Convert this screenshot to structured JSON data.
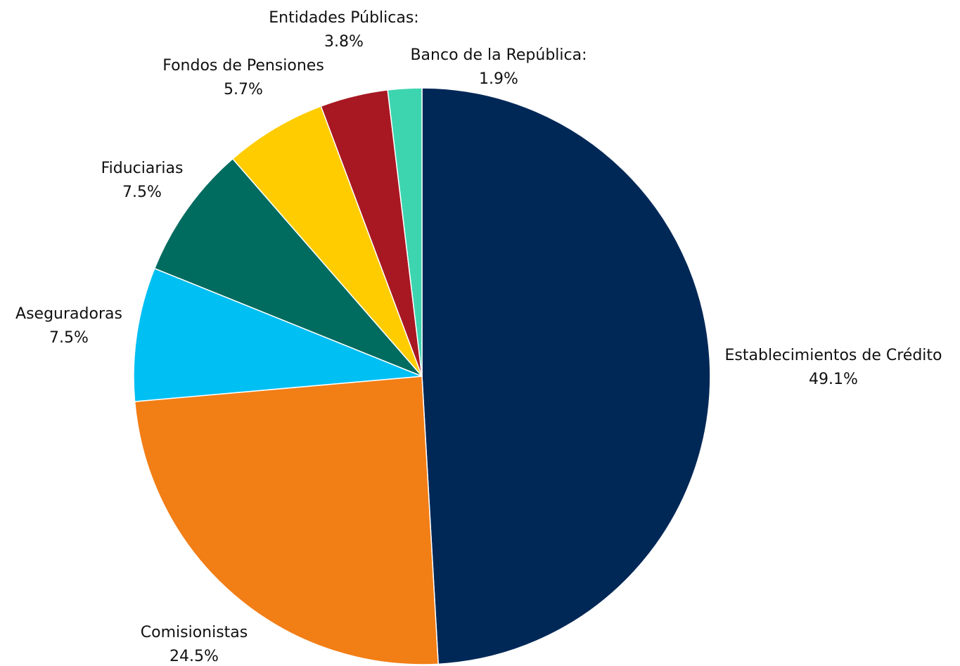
{
  "chart_data": {
    "type": "pie",
    "title": "",
    "slices": [
      {
        "label": "Establecimientos de Crédito",
        "value": 49.1,
        "value_label": "49.1%",
        "color": "#002857"
      },
      {
        "label": "Comisionistas",
        "value": 24.5,
        "value_label": "24.5%",
        "color": "#F27E16"
      },
      {
        "label": "Aseguradoras",
        "value": 7.5,
        "value_label": "7.5%",
        "color": "#00BFF2"
      },
      {
        "label": "Fiduciarias",
        "value": 7.5,
        "value_label": "7.5%",
        "color": "#006B5F"
      },
      {
        "label": "Fondos de Pensiones",
        "value": 5.7,
        "value_label": "5.7%",
        "color": "#FFCC00"
      },
      {
        "label": "Entidades Públicas:",
        "value": 3.8,
        "value_label": "3.8%",
        "color": "#A81822"
      },
      {
        "label": "Banco de la República:",
        "value": 1.9,
        "value_label": "1.9%",
        "color": "#3DD5B0"
      }
    ],
    "start_angle": "12 o'clock",
    "direction": "clockwise",
    "legend": "none",
    "labels": "outside slices"
  }
}
